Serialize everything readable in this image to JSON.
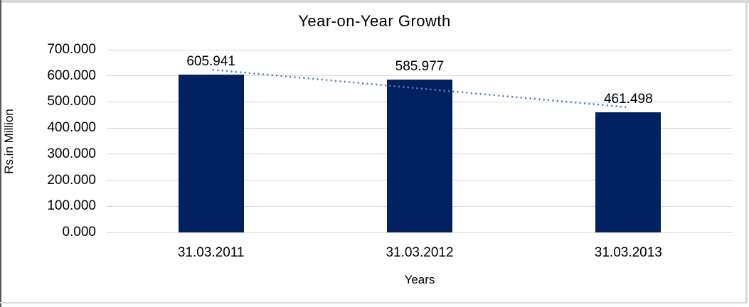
{
  "frame": {
    "border_color": "#d9d9d9",
    "left_edge_color": "#595959"
  },
  "chart_data": {
    "type": "bar",
    "title": "Year-on-Year Growth",
    "categories": [
      "31.03.2011",
      "31.03.2012",
      "31.03.2013"
    ],
    "values": [
      605.941,
      585.977,
      461.498
    ],
    "data_labels": [
      "605.941",
      "585.977",
      "461.498"
    ],
    "xlabel": "Years",
    "ylabel": "Rs.in Million",
    "ylim": [
      0,
      700
    ],
    "ytick_labels": [
      "0.000",
      "100.000",
      "200.000",
      "300.000",
      "400.000",
      "500.000",
      "600.000",
      "700.000"
    ],
    "grid": "horizontal",
    "legend": "none",
    "bar_color": "#002060",
    "gridline_color": "#d9d9d9",
    "text_color": "#000000",
    "trendline": {
      "type": "linear",
      "style": "dotted",
      "color": "#4f81bd"
    }
  }
}
